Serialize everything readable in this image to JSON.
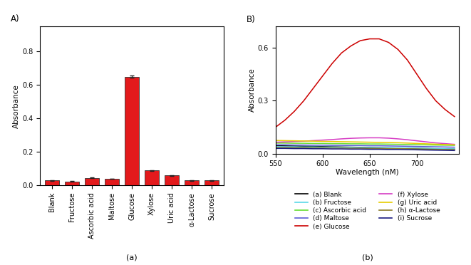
{
  "chart_data": [
    {
      "type": "bar",
      "title": "A)",
      "caption": "(a)",
      "y_label": "Absorbance",
      "categories": [
        "Blank",
        "Fructose",
        "Ascorbic acid",
        "Maltose",
        "Glucose",
        "Xylose",
        "Uric acid",
        "α-Lactose",
        "Sucrose"
      ],
      "values": [
        0.03,
        0.025,
        0.045,
        0.04,
        0.65,
        0.09,
        0.06,
        0.03,
        0.03
      ],
      "errors": [
        0.002,
        0.002,
        0.002,
        0.002,
        0.006,
        0.003,
        0.002,
        0.002,
        0.002
      ],
      "color": "#e31a1c",
      "ylim": [
        0,
        0.95
      ],
      "yticks": [
        {
          "value": 0.0,
          "label": "0.0"
        },
        0.2,
        0.4,
        0.6,
        0.8
      ]
    },
    {
      "type": "line",
      "title": "B)",
      "caption": "(b)",
      "x_label": "Wavelength (nM)",
      "y_label": "Absorbance",
      "x": [
        550,
        560,
        570,
        580,
        590,
        600,
        610,
        620,
        630,
        640,
        650,
        660,
        670,
        680,
        690,
        700,
        710,
        720,
        730,
        740
      ],
      "series": [
        {
          "name": "(a) Blank",
          "color": "#000000",
          "values": [
            0.045,
            0.044,
            0.043,
            0.042,
            0.041,
            0.04,
            0.039,
            0.038,
            0.037,
            0.036,
            0.035,
            0.034,
            0.033,
            0.032,
            0.031,
            0.03,
            0.029,
            0.028,
            0.027,
            0.026
          ]
        },
        {
          "name": "(b) Fructose",
          "color": "#5ad8e8",
          "values": [
            0.04,
            0.039,
            0.039,
            0.038,
            0.038,
            0.037,
            0.037,
            0.036,
            0.036,
            0.035,
            0.035,
            0.034,
            0.034,
            0.033,
            0.032,
            0.031,
            0.03,
            0.029,
            0.028,
            0.027
          ]
        },
        {
          "name": "(c) Ascorbic acid",
          "color": "#66dd33",
          "values": [
            0.06,
            0.06,
            0.059,
            0.059,
            0.058,
            0.058,
            0.057,
            0.057,
            0.056,
            0.056,
            0.055,
            0.055,
            0.054,
            0.053,
            0.052,
            0.051,
            0.05,
            0.049,
            0.048,
            0.047
          ]
        },
        {
          "name": "(d) Maltose",
          "color": "#5b5bd6",
          "values": [
            0.05,
            0.05,
            0.049,
            0.049,
            0.048,
            0.048,
            0.047,
            0.047,
            0.046,
            0.046,
            0.045,
            0.045,
            0.044,
            0.043,
            0.042,
            0.041,
            0.04,
            0.039,
            0.038,
            0.037
          ]
        },
        {
          "name": "(e) Glucose",
          "color": "#cc0000",
          "values": [
            0.15,
            0.19,
            0.24,
            0.3,
            0.37,
            0.44,
            0.51,
            0.57,
            0.61,
            0.64,
            0.65,
            0.65,
            0.63,
            0.59,
            0.53,
            0.45,
            0.37,
            0.3,
            0.25,
            0.21
          ]
        },
        {
          "name": "(f) Xylose",
          "color": "#d63cc4",
          "values": [
            0.065,
            0.067,
            0.069,
            0.071,
            0.074,
            0.077,
            0.08,
            0.084,
            0.087,
            0.089,
            0.09,
            0.09,
            0.088,
            0.084,
            0.079,
            0.073,
            0.067,
            0.061,
            0.057,
            0.053
          ]
        },
        {
          "name": "(g) Uric acid",
          "color": "#e6cc00",
          "values": [
            0.075,
            0.074,
            0.073,
            0.072,
            0.071,
            0.07,
            0.069,
            0.068,
            0.067,
            0.066,
            0.065,
            0.064,
            0.063,
            0.062,
            0.06,
            0.058,
            0.056,
            0.054,
            0.052,
            0.05
          ]
        },
        {
          "name": "(h) α-Lactose",
          "color": "#8a7a2a",
          "values": [
            0.035,
            0.035,
            0.034,
            0.034,
            0.033,
            0.033,
            0.032,
            0.032,
            0.031,
            0.031,
            0.03,
            0.03,
            0.029,
            0.029,
            0.028,
            0.027,
            0.026,
            0.025,
            0.024,
            0.023
          ]
        },
        {
          "name": "(i) Sucrose",
          "color": "#1a1a80",
          "values": [
            0.03,
            0.03,
            0.029,
            0.029,
            0.028,
            0.028,
            0.027,
            0.027,
            0.026,
            0.026,
            0.025,
            0.025,
            0.024,
            0.024,
            0.023,
            0.022,
            0.021,
            0.02,
            0.019,
            0.018
          ]
        }
      ],
      "xlim": [
        550,
        745
      ],
      "xticks": [
        550,
        600,
        650,
        700
      ],
      "ylim": [
        0,
        0.72
      ],
      "yticks": [
        {
          "value": 0.0,
          "label": "0.0"
        },
        0.3,
        0.6
      ],
      "legend": "upper center"
    }
  ]
}
